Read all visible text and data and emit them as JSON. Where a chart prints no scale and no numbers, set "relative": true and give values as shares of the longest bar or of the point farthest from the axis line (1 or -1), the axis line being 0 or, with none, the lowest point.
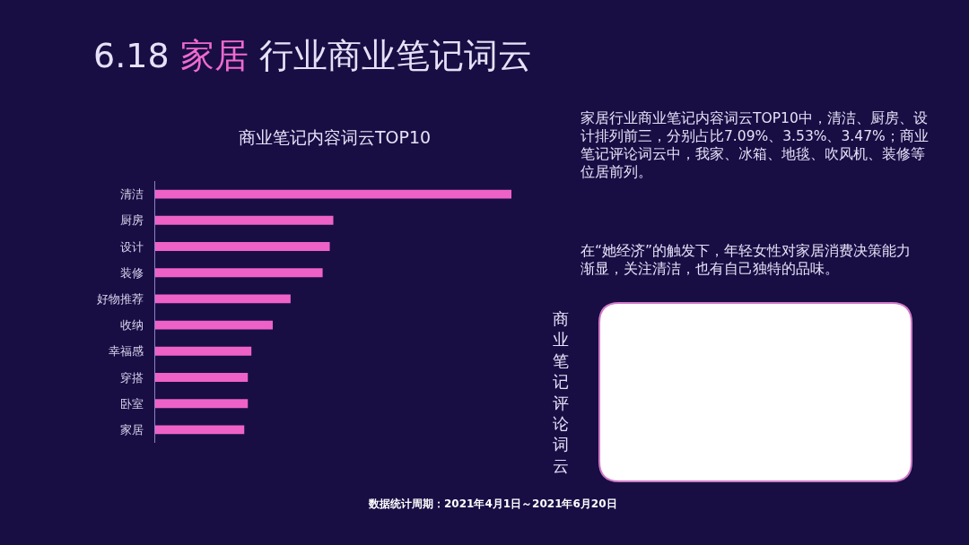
{
  "chart_data": {
    "type": "bar",
    "orientation": "horizontal",
    "relative": true,
    "title": "6.18 家居 行业商业笔记词云",
    "subtitle": "商业笔记内容词云TOP10",
    "categories": [
      "清洁",
      "厨房",
      "设计",
      "装修",
      "好物推荐",
      "收纳",
      "幸福感",
      "穿搭",
      "卧室",
      "家居"
    ],
    "values": [
      1,
      0.5,
      0.49,
      0.47,
      0.38,
      0.33,
      0.27,
      0.26,
      0.26,
      0.25
    ],
    "color": "#ee62c8",
    "annotations": [
      "家居行业商业笔记内容词云TOP10中，清洁、厨房、设计排列前三，分别占比7.09%、3.53%、3.47%；商业笔记评论词云中，我家、冰箱、地毯、吹风机、装修等位居前列。",
      "在“她经济”的触发下，年轻女性对家居消费决策能力渐显，关注清洁，也有自己独特的品味。",
      "商业笔记评论词云",
      "数据统计周期：2021年4月1日～2021年6月20日"
    ]
  }
}
